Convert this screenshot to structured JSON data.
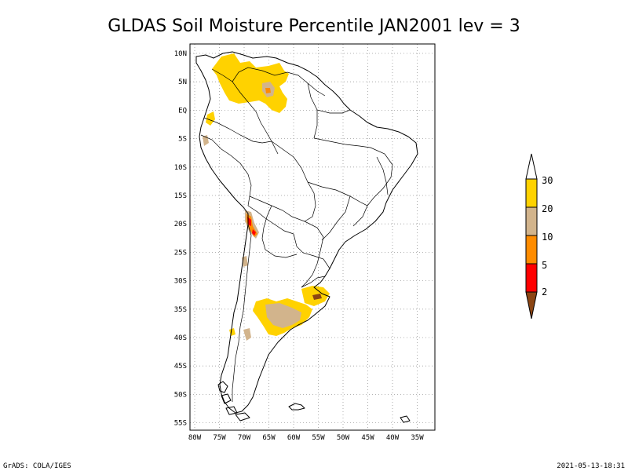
{
  "title": "GLDAS Soil Moisture Percentile JAN2001 lev = 3",
  "footer_left": "GrADS: COLA/IGES",
  "footer_right": "2021-05-13-18:31",
  "map": {
    "lon_range": [
      -80,
      -33
    ],
    "lat_range": [
      -56,
      12
    ],
    "lat_ticks": [
      "10N",
      "5N",
      "EQ",
      "5S",
      "10S",
      "15S",
      "20S",
      "25S",
      "30S",
      "35S",
      "40S",
      "45S",
      "50S",
      "55S"
    ],
    "lon_ticks": [
      "80W",
      "75W",
      "70W",
      "65W",
      "60W",
      "55W",
      "50W",
      "45W",
      "40W",
      "35W"
    ],
    "grid": true
  },
  "legend": {
    "labels": [
      "30",
      "20",
      "10",
      "5",
      "2"
    ],
    "colors": {
      "above_30": "#ffffff",
      "20_30": "#ffd200",
      "10_20": "#d2b48c",
      "5_10": "#ff8c00",
      "2_5": "#ff0000",
      "below_2": "#8b4513"
    }
  }
}
